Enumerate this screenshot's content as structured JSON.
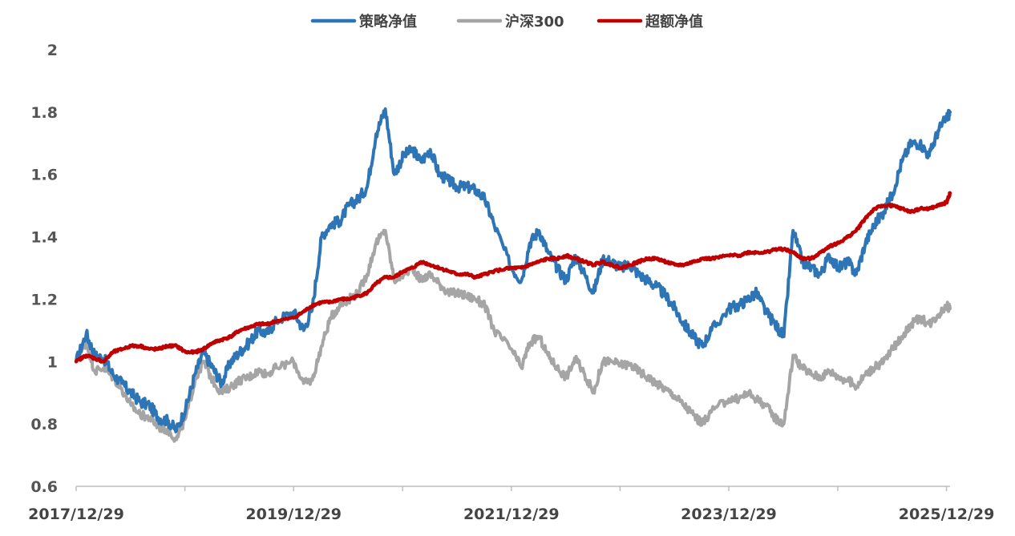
{
  "chart_data": {
    "type": "line",
    "title": "",
    "xlabel": "",
    "ylabel": "",
    "ylim": [
      0.6,
      2.0
    ],
    "y_ticks": [
      "0.6",
      "0.8",
      "1",
      "1.2",
      "1.4",
      "1.6",
      "1.8",
      "2"
    ],
    "x_tick_labels": [
      "2017/12/29",
      "2019/12/29",
      "2021/12/29",
      "2023/12/29",
      "2025/12/29"
    ],
    "legend_position": "top-center",
    "x": [
      "2017-12-29",
      "2018-02-01",
      "2018-03-01",
      "2018-04-01",
      "2018-05-01",
      "2018-06-01",
      "2018-07-01",
      "2018-08-01",
      "2018-09-01",
      "2018-10-01",
      "2018-11-01",
      "2018-12-01",
      "2019-01-01",
      "2019-02-01",
      "2019-03-01",
      "2019-04-01",
      "2019-05-01",
      "2019-06-01",
      "2019-07-01",
      "2019-08-01",
      "2019-09-01",
      "2019-10-01",
      "2019-11-01",
      "2019-12-29",
      "2020-02-01",
      "2020-03-01",
      "2020-04-01",
      "2020-05-01",
      "2020-06-01",
      "2020-07-01",
      "2020-08-01",
      "2020-09-01",
      "2020-10-01",
      "2020-11-01",
      "2020-12-01",
      "2021-01-01",
      "2021-02-01",
      "2021-03-01",
      "2021-04-01",
      "2021-05-01",
      "2021-06-01",
      "2021-07-01",
      "2021-08-01",
      "2021-09-01",
      "2021-10-01",
      "2021-11-01",
      "2021-12-29",
      "2022-02-01",
      "2022-03-01",
      "2022-04-01",
      "2022-05-01",
      "2022-06-01",
      "2022-07-01",
      "2022-08-01",
      "2022-09-01",
      "2022-10-01",
      "2022-11-01",
      "2022-12-01",
      "2023-01-01",
      "2023-02-01",
      "2023-03-01",
      "2023-04-01",
      "2023-05-01",
      "2023-06-01",
      "2023-07-01",
      "2023-08-01",
      "2023-09-01",
      "2023-10-01",
      "2023-11-01",
      "2023-12-29",
      "2024-02-01",
      "2024-03-01",
      "2024-04-01",
      "2024-05-01",
      "2024-06-01",
      "2024-07-01",
      "2024-08-01",
      "2024-09-01",
      "2024-10-01",
      "2024-11-01",
      "2024-12-01",
      "2025-01-01",
      "2025-02-01",
      "2025-03-01",
      "2025-04-01",
      "2025-05-01",
      "2025-06-01",
      "2025-07-01",
      "2025-08-01",
      "2025-09-01",
      "2025-10-01",
      "2025-11-01",
      "2025-12-01",
      "2025-12-29",
      "2026-01-10"
    ],
    "series": [
      {
        "name": "策略净值",
        "color": "#2e75b6",
        "values": [
          1.0,
          1.09,
          1.02,
          1.01,
          0.96,
          0.93,
          0.9,
          0.87,
          0.86,
          0.82,
          0.81,
          0.78,
          0.85,
          0.96,
          1.03,
          0.98,
          0.93,
          1.0,
          1.03,
          1.06,
          1.1,
          1.09,
          1.13,
          1.16,
          1.1,
          1.17,
          1.4,
          1.44,
          1.45,
          1.5,
          1.52,
          1.56,
          1.73,
          1.81,
          1.6,
          1.66,
          1.68,
          1.64,
          1.68,
          1.6,
          1.58,
          1.56,
          1.56,
          1.55,
          1.52,
          1.44,
          1.3,
          1.26,
          1.38,
          1.42,
          1.35,
          1.3,
          1.26,
          1.34,
          1.28,
          1.22,
          1.33,
          1.32,
          1.3,
          1.31,
          1.28,
          1.26,
          1.24,
          1.21,
          1.17,
          1.12,
          1.08,
          1.05,
          1.1,
          1.17,
          1.18,
          1.2,
          1.22,
          1.16,
          1.12,
          1.08,
          1.42,
          1.32,
          1.3,
          1.28,
          1.34,
          1.3,
          1.32,
          1.28,
          1.38,
          1.44,
          1.48,
          1.54,
          1.64,
          1.7,
          1.7,
          1.66,
          1.74,
          1.78,
          1.8
        ]
      },
      {
        "name": "沪深300",
        "color": "#a5a5a5",
        "values": [
          1.0,
          1.06,
          0.97,
          0.98,
          0.95,
          0.91,
          0.86,
          0.83,
          0.82,
          0.79,
          0.78,
          0.75,
          0.82,
          0.94,
          1.0,
          0.94,
          0.9,
          0.92,
          0.94,
          0.95,
          0.97,
          0.96,
          0.98,
          1.0,
          0.93,
          0.94,
          1.05,
          1.14,
          1.18,
          1.2,
          1.22,
          1.28,
          1.38,
          1.42,
          1.26,
          1.28,
          1.3,
          1.26,
          1.28,
          1.25,
          1.22,
          1.22,
          1.21,
          1.2,
          1.18,
          1.1,
          1.04,
          0.98,
          1.06,
          1.08,
          1.02,
          0.98,
          0.95,
          1.01,
          0.96,
          0.9,
          1.0,
          1.0,
          0.99,
          0.99,
          0.97,
          0.95,
          0.93,
          0.91,
          0.89,
          0.86,
          0.83,
          0.8,
          0.84,
          0.88,
          0.88,
          0.9,
          0.88,
          0.86,
          0.82,
          0.8,
          1.02,
          0.98,
          0.96,
          0.95,
          0.97,
          0.95,
          0.94,
          0.92,
          0.96,
          0.98,
          1.0,
          1.04,
          1.08,
          1.12,
          1.14,
          1.12,
          1.15,
          1.18,
          1.17
        ]
      },
      {
        "name": "超额净值",
        "color": "#c00000",
        "values": [
          1.0,
          1.02,
          1.01,
          1.0,
          1.03,
          1.04,
          1.05,
          1.05,
          1.04,
          1.04,
          1.05,
          1.05,
          1.03,
          1.03,
          1.04,
          1.06,
          1.07,
          1.08,
          1.1,
          1.11,
          1.12,
          1.12,
          1.13,
          1.14,
          1.16,
          1.18,
          1.19,
          1.19,
          1.2,
          1.2,
          1.21,
          1.22,
          1.25,
          1.27,
          1.27,
          1.29,
          1.3,
          1.32,
          1.31,
          1.3,
          1.29,
          1.28,
          1.28,
          1.27,
          1.28,
          1.29,
          1.3,
          1.3,
          1.31,
          1.32,
          1.33,
          1.33,
          1.34,
          1.33,
          1.32,
          1.31,
          1.32,
          1.31,
          1.3,
          1.31,
          1.32,
          1.33,
          1.33,
          1.32,
          1.31,
          1.31,
          1.32,
          1.33,
          1.33,
          1.34,
          1.34,
          1.35,
          1.35,
          1.35,
          1.36,
          1.36,
          1.35,
          1.33,
          1.33,
          1.35,
          1.37,
          1.38,
          1.4,
          1.42,
          1.46,
          1.49,
          1.5,
          1.5,
          1.49,
          1.48,
          1.49,
          1.49,
          1.5,
          1.51,
          1.54
        ]
      }
    ]
  }
}
